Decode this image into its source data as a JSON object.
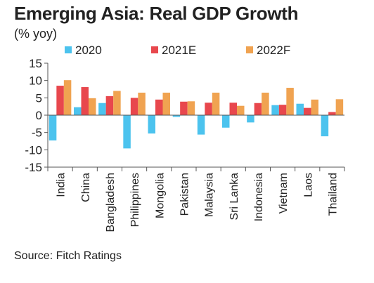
{
  "chart_data": {
    "type": "bar",
    "title": "Emerging Asia: Real GDP Growth",
    "subtitle": "(% yoy)",
    "source": "Source: Fitch Ratings",
    "categories": [
      "India",
      "China",
      "Bangladesh",
      "Philippines",
      "Mongolia",
      "Pakistan",
      "Malaysia",
      "Sri Lanka",
      "Indonesia",
      "Vietnam",
      "Laos",
      "Thailand"
    ],
    "series": [
      {
        "name": "2020",
        "color": "#4cc3ee",
        "values": [
          -7.3,
          2.3,
          3.5,
          -9.6,
          -5.3,
          -0.5,
          -5.6,
          -3.6,
          -2.1,
          2.9,
          3.3,
          -6.1
        ]
      },
      {
        "name": "2021E",
        "color": "#e8474d",
        "values": [
          8.5,
          8.1,
          5.5,
          5.0,
          4.5,
          3.9,
          3.6,
          3.6,
          3.5,
          3.0,
          2.1,
          0.9
        ]
      },
      {
        "name": "2022F",
        "color": "#f0a351",
        "values": [
          10.1,
          4.9,
          7.0,
          6.5,
          6.5,
          4.0,
          6.5,
          2.7,
          6.5,
          7.9,
          4.5,
          4.6
        ]
      }
    ],
    "ylim": [
      -15,
      15
    ],
    "yticks": [
      15,
      10,
      5,
      0,
      -5,
      -10,
      -15
    ],
    "legend_position": "top",
    "grid": false
  }
}
